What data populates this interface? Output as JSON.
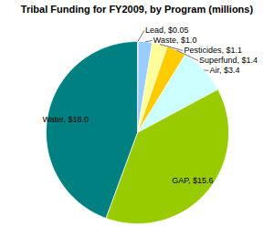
{
  "chart_data": {
    "type": "pie",
    "title": "Tribal Funding for FY2009, by Program (millions)",
    "categories": [
      "Lead",
      "Waste",
      "Pesticides",
      "Superfund",
      "Air",
      "GAP",
      "Water"
    ],
    "values": [
      0.05,
      1.0,
      1.1,
      1.4,
      3.4,
      15.6,
      18.0
    ],
    "value_labels": [
      "Lead, $0.05",
      "Waste, $1.0",
      "Pesticides, $1.1",
      "Superfund, $1.4",
      "Air, $3.4",
      "GAP, $15.6",
      "Water, $18.0"
    ],
    "colors": [
      "#c0c0c0",
      "#99ccff",
      "#ffff99",
      "#ffcc00",
      "#ccffff",
      "#99cc00",
      "#008080"
    ],
    "data_labels": true,
    "tick_labels": false
  }
}
